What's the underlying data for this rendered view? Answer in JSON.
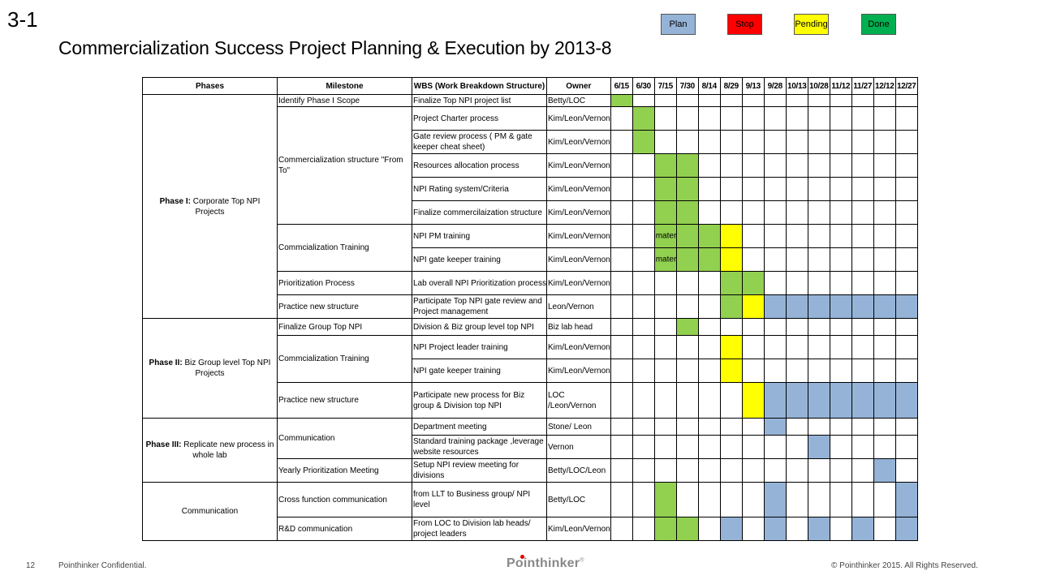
{
  "slide_number": "3-1",
  "title": "Commercialization Success Project Planning & Execution by 2013-8",
  "legend": [
    {
      "label": "Plan",
      "color": "#95b3d7"
    },
    {
      "label": "Stop",
      "color": "#ff0000"
    },
    {
      "label": "Pending",
      "color": "#ffff00"
    },
    {
      "label": "Done",
      "color": "#00b050"
    }
  ],
  "table": {
    "headers": {
      "phases": "Phases",
      "milestone": "Milestone",
      "wbs": "WBS (Work Breakdown Structure)",
      "owner": "Owner"
    },
    "dates": [
      "6/15",
      "6/30",
      "7/15",
      "7/30",
      "8/14",
      "8/29",
      "9/13",
      "9/28",
      "10/13",
      "10/28",
      "11/12",
      "11/27",
      "12/12",
      "12/27"
    ],
    "phase_groups": [
      {
        "bold": "Phase I:",
        "text": " Corporate Top NPI Projects"
      },
      {
        "bold": "Phase II:",
        "text": "  Biz Group level Top NPI Projects"
      },
      {
        "bold": "Phase III:",
        "text": " Replicate new process in whole lab"
      },
      {
        "bold": "",
        "text": "Communication"
      }
    ],
    "milestones": [
      "Identify Phase I Scope",
      "Commercialization structure \"From To\"",
      "Commcialization Training",
      "Prioritization Process",
      "Practice new structure",
      "Finalize Group Top NPI",
      "Commcialization Training",
      "Practice new structure",
      "Communication",
      "Yearly Prioritization Meeting",
      "Cross function communication",
      "R&D communication"
    ],
    "rows": [
      {
        "wbs": "Finalize Top NPI project list",
        "owner": "Betty/LOC"
      },
      {
        "wbs": "Project Charter process",
        "owner": "Kim/Leon/Vernon"
      },
      {
        "wbs": "Gate review process ( PM & gate keeper cheat sheet)",
        "owner": "Kim/Leon/Vernon"
      },
      {
        "wbs": "Resources allocation process",
        "owner": "Kim/Leon/Vernon"
      },
      {
        "wbs": "NPI Rating system/Criteria",
        "owner": "Kim/Leon/Vernon"
      },
      {
        "wbs": "Finalize commercilaization structure",
        "owner": "Kim/Leon/Vernon"
      },
      {
        "wbs": "NPI PM training",
        "owner": "Kim/Leon/Vernon",
        "note": "material preparing"
      },
      {
        "wbs": "NPI gate keeper training",
        "owner": "Kim/Leon/Vernon",
        "note": "material preparing"
      },
      {
        "wbs": "Lab overall NPI Prioritization process",
        "owner": "Kim/Leon/Vernon"
      },
      {
        "wbs": "Participate Top NPI gate review and Project management",
        "owner": "Leon/Vernon"
      },
      {
        "wbs": "Division & Biz group level top NPI",
        "owner": "Biz lab head"
      },
      {
        "wbs": "NPI Project leader training",
        "owner": "Kim/Leon/Vernon"
      },
      {
        "wbs": "NPI gate keeper training",
        "owner": "Kim/Leon/Vernon"
      },
      {
        "wbs": "Participate new process for Biz group & Division top NPI",
        "owner": "LOC /Leon/Vernon"
      },
      {
        "wbs": "Department meeting",
        "owner": "Stone/ Leon"
      },
      {
        "wbs": "Standard training package ,leverage website resources",
        "owner": "Vernon"
      },
      {
        "wbs": "Setup NPI review meeting for divisions",
        "owner": "Betty/LOC/Leon"
      },
      {
        "wbs": "from LLT to Business group/ NPI level",
        "owner": "Betty/LOC"
      },
      {
        "wbs": "From LOC to Division lab heads/ project leaders",
        "owner": "Kim/Leon/Vernon"
      }
    ],
    "status_colors": {
      "g": "#92d050",
      "y": "#ffff00",
      "b": "#95b3d7"
    },
    "cells": [
      "g.............",
      ".g............",
      ".g............",
      "..gg..........",
      "..gg..........",
      "..gg..........",
      "..gggy........",
      "..gggy........",
      ".....gg.......",
      ".....gybbbbbbb",
      "...g..........",
      ".....y........",
      ".....y........",
      "......ybbbbbbb",
      ".......b......",
      ".........b....",
      "............b.",
      "..g....b.....b",
      "..gg.b.b.b.b.b"
    ]
  },
  "footer": {
    "page": "12",
    "confidential": "Pointhinker Confidential.",
    "logo": "Pointhinker",
    "logo_mark": "®",
    "copyright": "© Pointhinker   2015. All Rights Reserved."
  }
}
